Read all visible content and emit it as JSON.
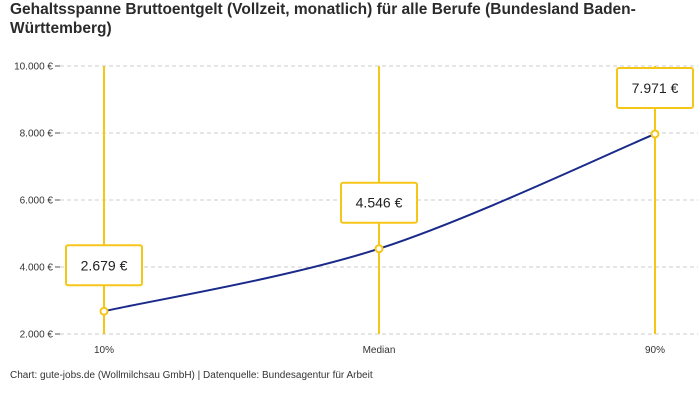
{
  "title": "Gehaltsspanne Bruttoentgelt (Vollzeit, monatlich) für alle Berufe (Bundesland Baden-Württemberg)",
  "footer": "Chart: gute-jobs.de (Wollmilchsau GmbH) | Datenquelle: Bundesagentur für Arbeit",
  "colors": {
    "line": "#1a2a8a",
    "accent": "#f5c518",
    "grid": "#cccccc"
  },
  "chart_data": {
    "type": "line",
    "categories": [
      "10%",
      "Median",
      "90%"
    ],
    "values": [
      2679,
      4546,
      7971
    ],
    "value_labels": [
      "2.679 €",
      "4.546 €",
      "7.971 €"
    ],
    "ylim": [
      2000,
      10000
    ],
    "yticks": [
      2000,
      4000,
      6000,
      8000,
      10000
    ],
    "ytick_labels": [
      "2.000 €",
      "4.000 €",
      "6.000 €",
      "8.000 €",
      "10.000 €"
    ],
    "grid": true
  }
}
